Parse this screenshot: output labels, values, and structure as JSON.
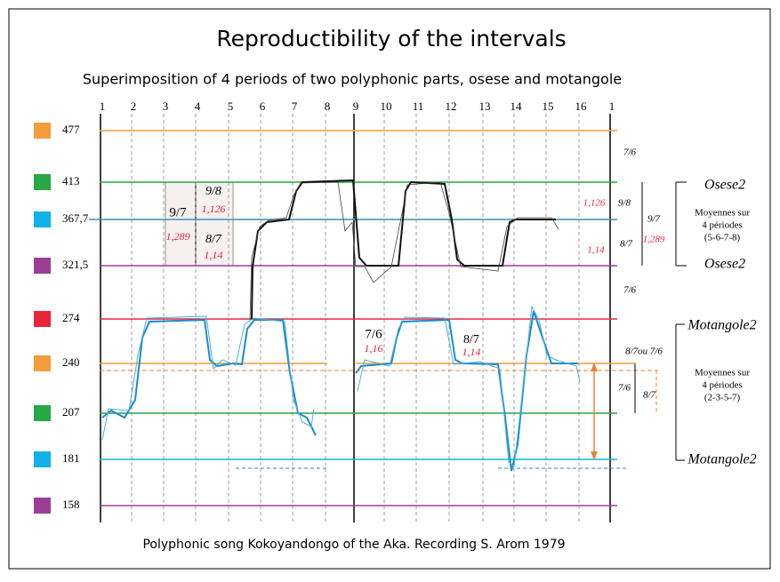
{
  "title": "Reproductibility of the intervals",
  "subtitle": "Superimposition of 4 periods of two polyphonic parts, osese and motangole",
  "footer": "Polyphonic song Kokoyandongo of the Aka. Recording S. Arom 1979",
  "beats": [
    "1",
    "2",
    "3",
    "4",
    "5",
    "6",
    "7",
    "8",
    "9",
    "10",
    "11",
    "12",
    "13",
    "14",
    "15",
    "16",
    "1"
  ],
  "levels": [
    "477",
    "413",
    "367,7",
    "321,5",
    "274",
    "240",
    "207",
    "181",
    "158"
  ],
  "left_box": [
    "9/7",
    "1,289",
    "9/8",
    "1,126",
    "8/7",
    "1,14"
  ],
  "middle_labels": [
    "7/6",
    "1,16",
    "8/7",
    "1,14"
  ],
  "right_ratios": [
    "7/6",
    "9/8",
    "1,126",
    "9/7",
    "1,289",
    "8/7",
    "1,14",
    "7/6",
    "8/7ou 7/6",
    "7/6",
    "8/7"
  ],
  "parts": [
    "Osese2",
    "Osese2",
    "Motangole2",
    "Motangole2"
  ],
  "averages": [
    [
      "Moyennes sur",
      "4 périodes",
      "(5-6-7-8)"
    ],
    [
      "Moyennes sur",
      "4 périodes",
      "(2-3-5-7)"
    ]
  ]
}
